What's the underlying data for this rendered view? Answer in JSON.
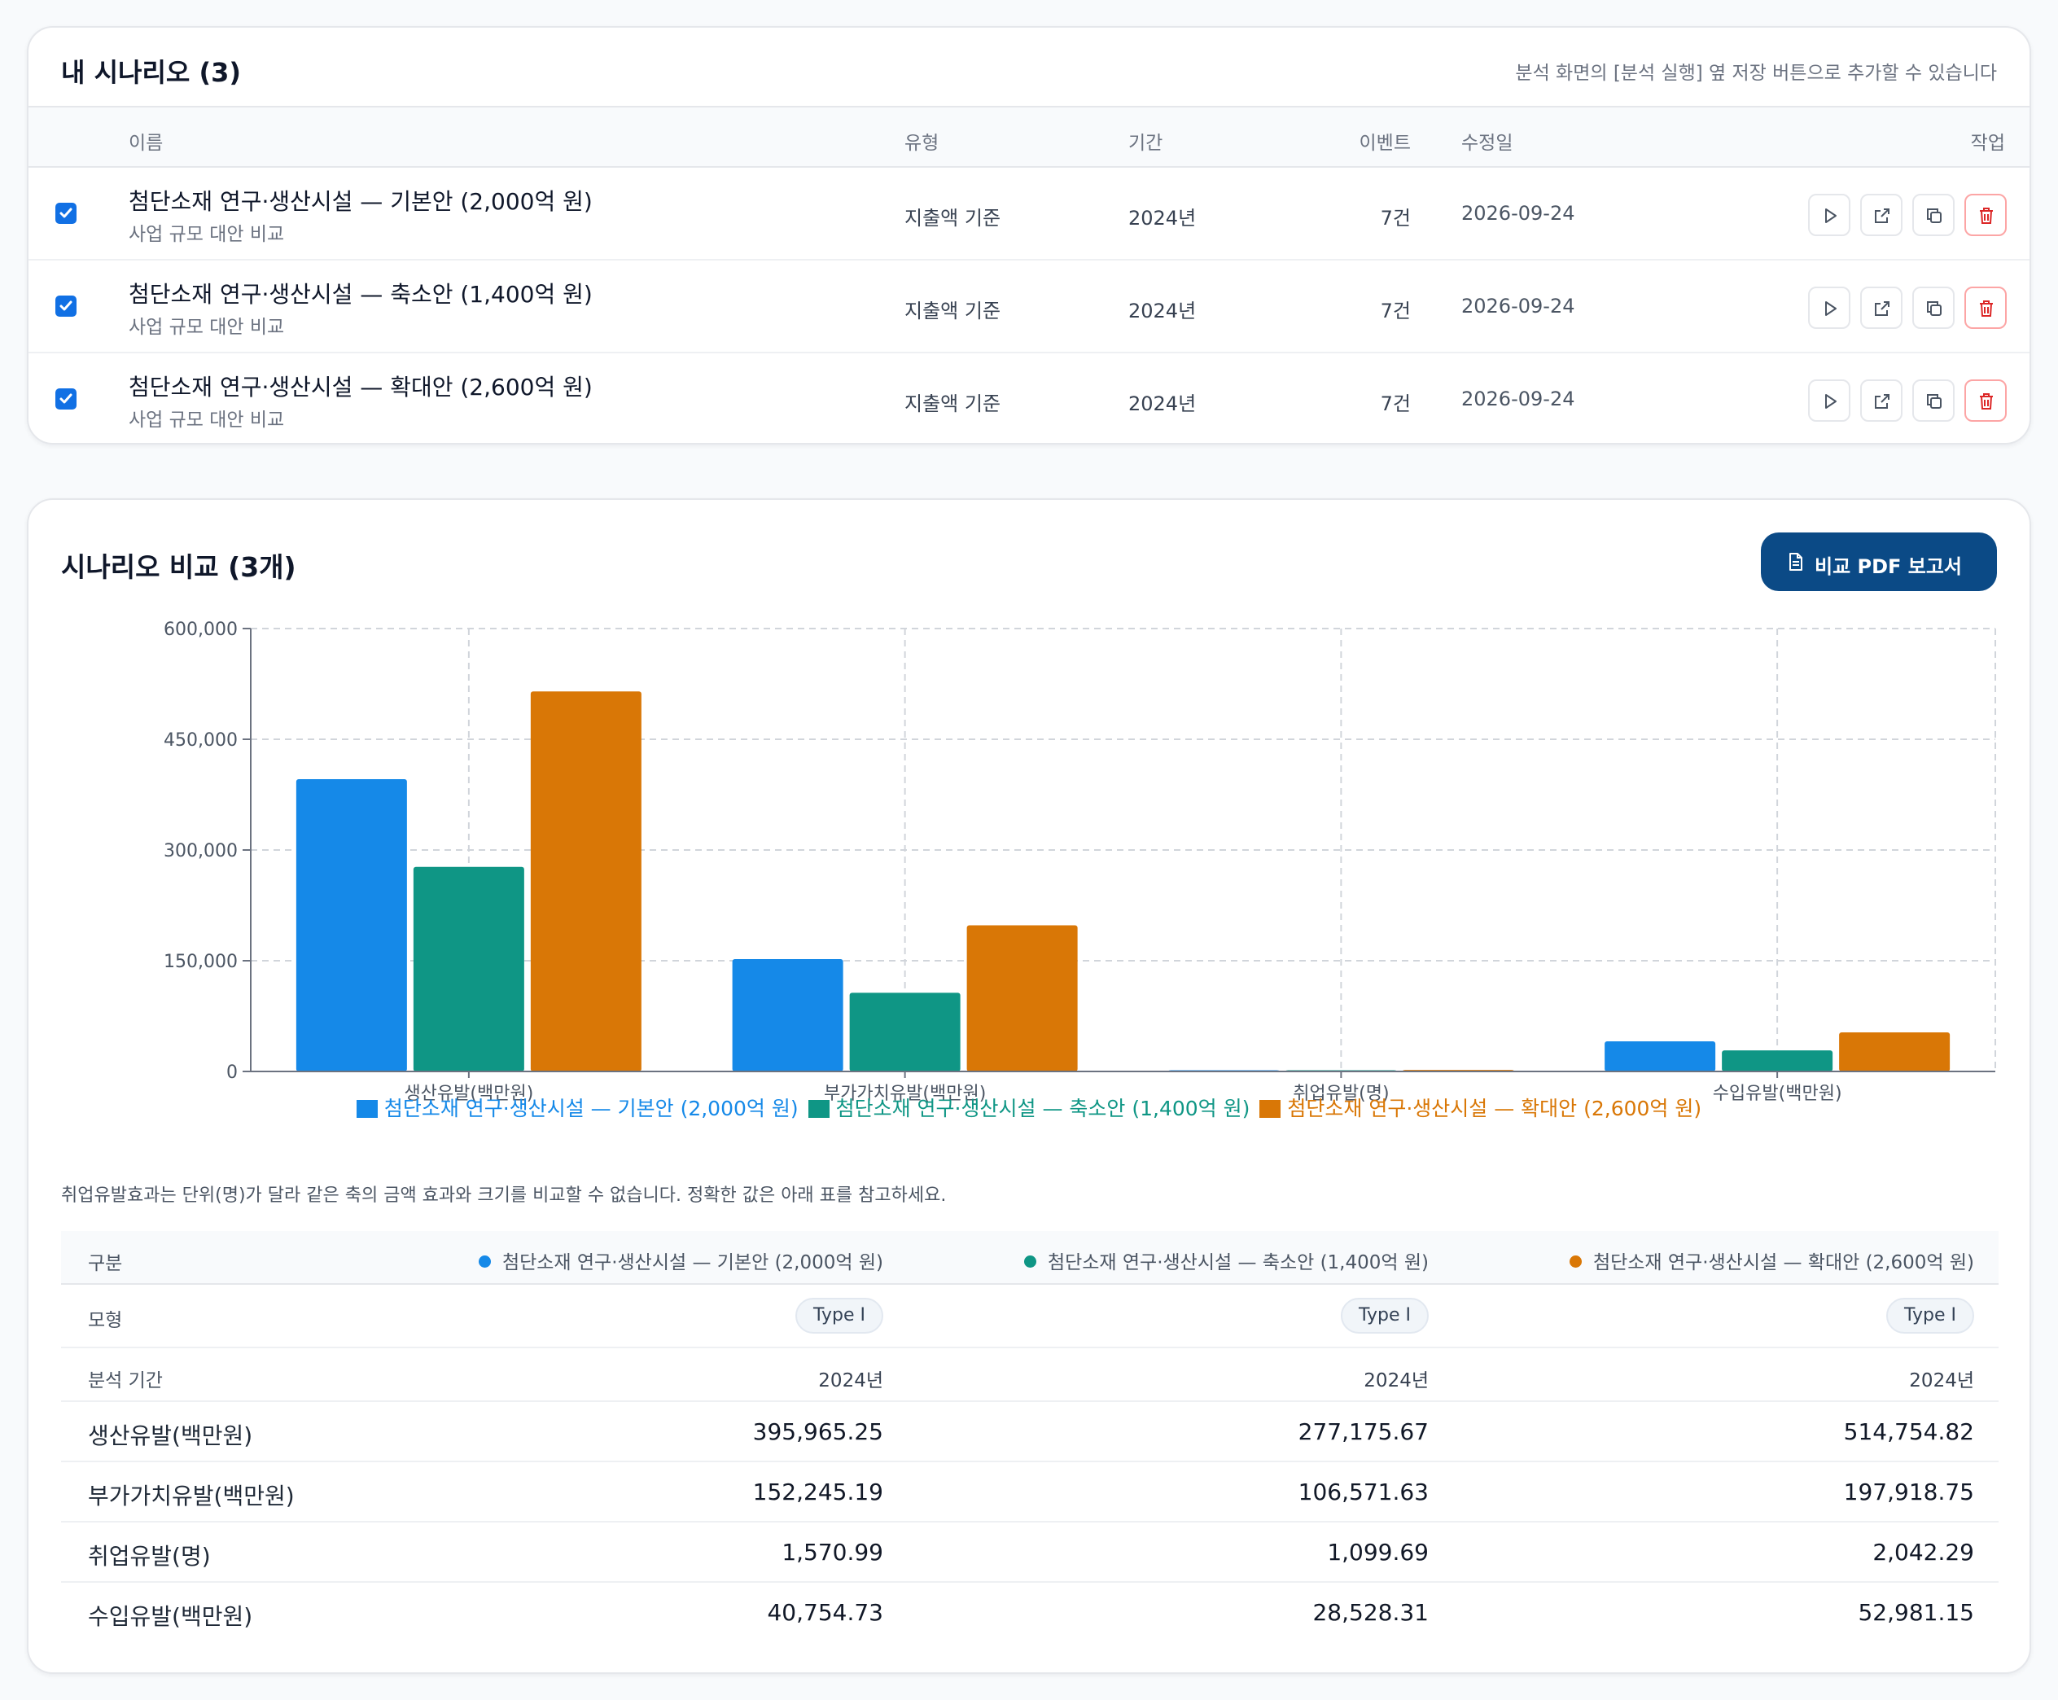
{
  "scenarios": {
    "title": "내 시나리오 (3)",
    "hint": "분석 화면의 [분석 실행] 옆 저장 버튼으로 추가할 수 있습니다",
    "columns": {
      "name": "이름",
      "type": "유형",
      "period": "기간",
      "events": "이벤트",
      "modified": "수정일",
      "actions": "작업"
    },
    "rows": [
      {
        "checked": true,
        "name": "첨단소재 연구·생산시설 — 기본안 (2,000억 원)",
        "sub": "사업 규모 대안 비교",
        "type": "지출액 기준",
        "period": "2024년",
        "events": "7건",
        "modified": "2026-09-24"
      },
      {
        "checked": true,
        "name": "첨단소재 연구·생산시설 — 축소안 (1,400억 원)",
        "sub": "사업 규모 대안 비교",
        "type": "지출액 기준",
        "period": "2024년",
        "events": "7건",
        "modified": "2026-09-24"
      },
      {
        "checked": true,
        "name": "첨단소재 연구·생산시설 — 확대안 (2,600억 원)",
        "sub": "사업 규모 대안 비교",
        "type": "지출액 기준",
        "period": "2024년",
        "events": "7건",
        "modified": "2026-09-24"
      }
    ],
    "action_icons": [
      "play-icon",
      "external-link-icon",
      "copy-icon",
      "trash-icon"
    ]
  },
  "comparison": {
    "title": "시나리오 비교 (3개)",
    "pdf_button": "비교 PDF 보고서",
    "note": "취업유발효과는 단위(명)가 달라 같은 축의 금액 효과와 크기를 비교할 수 없습니다. 정확한 값은 아래 표를 참고하세요.",
    "table": {
      "header_label": "구분",
      "model_label": "모형",
      "model_values": [
        "Type I",
        "Type I",
        "Type I"
      ],
      "period_label": "분석 기간",
      "period_values": [
        "2024년",
        "2024년",
        "2024년"
      ],
      "rows": [
        {
          "label": "생산유발(백만원)",
          "values": [
            "395,965.25",
            "277,175.67",
            "514,754.82"
          ]
        },
        {
          "label": "부가가치유발(백만원)",
          "values": [
            "152,245.19",
            "106,571.63",
            "197,918.75"
          ]
        },
        {
          "label": "취업유발(명)",
          "values": [
            "1,570.99",
            "1,099.69",
            "2,042.29"
          ]
        },
        {
          "label": "수입유발(백만원)",
          "values": [
            "40,754.73",
            "28,528.31",
            "52,981.15"
          ]
        }
      ]
    }
  },
  "chart_data": {
    "type": "bar",
    "categories": [
      "생산유발(백만원)",
      "부가가치유발(백만원)",
      "취업유발(명)",
      "수입유발(백만원)"
    ],
    "series": [
      {
        "name": "첨단소재 연구·생산시설 — 기본안 (2,000억 원)",
        "color": "#1589e8",
        "values": [
          395965.25,
          152245.19,
          1570.99,
          40754.73
        ]
      },
      {
        "name": "첨단소재 연구·생산시설 — 축소안 (1,400억 원)",
        "color": "#0f9685",
        "values": [
          277175.67,
          106571.63,
          1099.69,
          28528.31
        ]
      },
      {
        "name": "첨단소재 연구·생산시설 — 확대안 (2,600억 원)",
        "color": "#d97706",
        "values": [
          514754.82,
          197918.75,
          2042.29,
          52981.15
        ]
      }
    ],
    "ylim": [
      0,
      600000
    ],
    "yticks": [
      "0",
      "150,000",
      "300,000",
      "450,000",
      "600,000"
    ],
    "grid": true,
    "legend": "bottom"
  }
}
